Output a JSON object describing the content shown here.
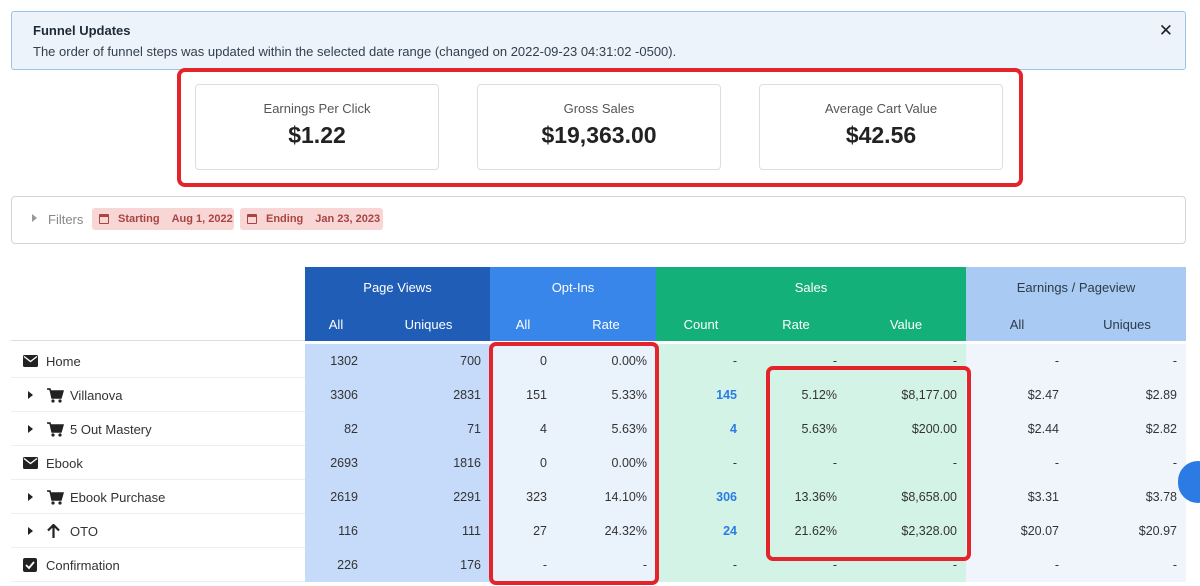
{
  "alert": {
    "title": "Funnel Updates",
    "message": "The order of funnel steps was updated within the selected date range (changed on 2022-09-23 04:31:02 -0500).",
    "close_glyph": "✕"
  },
  "stats": [
    {
      "label": "Earnings Per Click",
      "value": "$1.22"
    },
    {
      "label": "Gross Sales",
      "value": "$19,363.00"
    },
    {
      "label": "Average Cart Value",
      "value": "$42.56"
    }
  ],
  "filters": {
    "label": "Filters",
    "start_label": "Starting",
    "start_date": "Aug 1, 2022",
    "end_label": "Ending",
    "end_date": "Jan 23, 2023"
  },
  "table": {
    "groups": {
      "page_views": "Page Views",
      "opt_ins": "Opt-Ins",
      "sales": "Sales",
      "earnings": "Earnings / Pageview"
    },
    "sub": {
      "pv_all": "All",
      "pv_uniques": "Uniques",
      "oi_all": "All",
      "oi_rate": "Rate",
      "sa_count": "Count",
      "sa_rate": "Rate",
      "sa_value": "Value",
      "ep_all": "All",
      "ep_uniques": "Uniques"
    },
    "rows": [
      {
        "name": "Home",
        "icon": "envelope-icon",
        "pv_all": "1302",
        "pv_uniques": "700",
        "oi_all": "0",
        "oi_rate": "0.00%",
        "sa_count": "-",
        "sa_rate": "-",
        "sa_value": "-",
        "ep_all": "-",
        "ep_uniques": "-"
      },
      {
        "name": "Villanova",
        "icon": "cart-icon",
        "pv_all": "3306",
        "pv_uniques": "2831",
        "oi_all": "151",
        "oi_rate": "5.33%",
        "sa_count": "145",
        "sa_rate": "5.12%",
        "sa_value": "$8,177.00",
        "ep_all": "$2.47",
        "ep_uniques": "$2.89"
      },
      {
        "name": "5 Out Mastery",
        "icon": "cart-icon",
        "pv_all": "82",
        "pv_uniques": "71",
        "oi_all": "4",
        "oi_rate": "5.63%",
        "sa_count": "4",
        "sa_rate": "5.63%",
        "sa_value": "$200.00",
        "ep_all": "$2.44",
        "ep_uniques": "$2.82"
      },
      {
        "name": "Ebook",
        "icon": "envelope-icon",
        "pv_all": "2693",
        "pv_uniques": "1816",
        "oi_all": "0",
        "oi_rate": "0.00%",
        "sa_count": "-",
        "sa_rate": "-",
        "sa_value": "-",
        "ep_all": "-",
        "ep_uniques": "-"
      },
      {
        "name": "Ebook Purchase",
        "icon": "cart-icon",
        "pv_all": "2619",
        "pv_uniques": "2291",
        "oi_all": "323",
        "oi_rate": "14.10%",
        "sa_count": "306",
        "sa_rate": "13.36%",
        "sa_value": "$8,658.00",
        "ep_all": "$3.31",
        "ep_uniques": "$3.78"
      },
      {
        "name": "OTO",
        "icon": "arrow-up-icon",
        "pv_all": "116",
        "pv_uniques": "111",
        "oi_all": "27",
        "oi_rate": "24.32%",
        "sa_count": "24",
        "sa_rate": "21.62%",
        "sa_value": "$2,328.00",
        "ep_all": "$20.07",
        "ep_uniques": "$20.97"
      },
      {
        "name": "Confirmation",
        "icon": "checkbox-icon",
        "pv_all": "226",
        "pv_uniques": "176",
        "oi_all": "-",
        "oi_rate": "-",
        "sa_count": "-",
        "sa_rate": "-",
        "sa_value": "-",
        "ep_all": "-",
        "ep_uniques": "-"
      }
    ]
  },
  "colors": {
    "highlight": "#e3242b",
    "page_views": "#1f5db7",
    "opt_ins": "#3886ea",
    "sales": "#13b07a",
    "earnings": "#a9caf3",
    "link": "#2c7be5"
  }
}
